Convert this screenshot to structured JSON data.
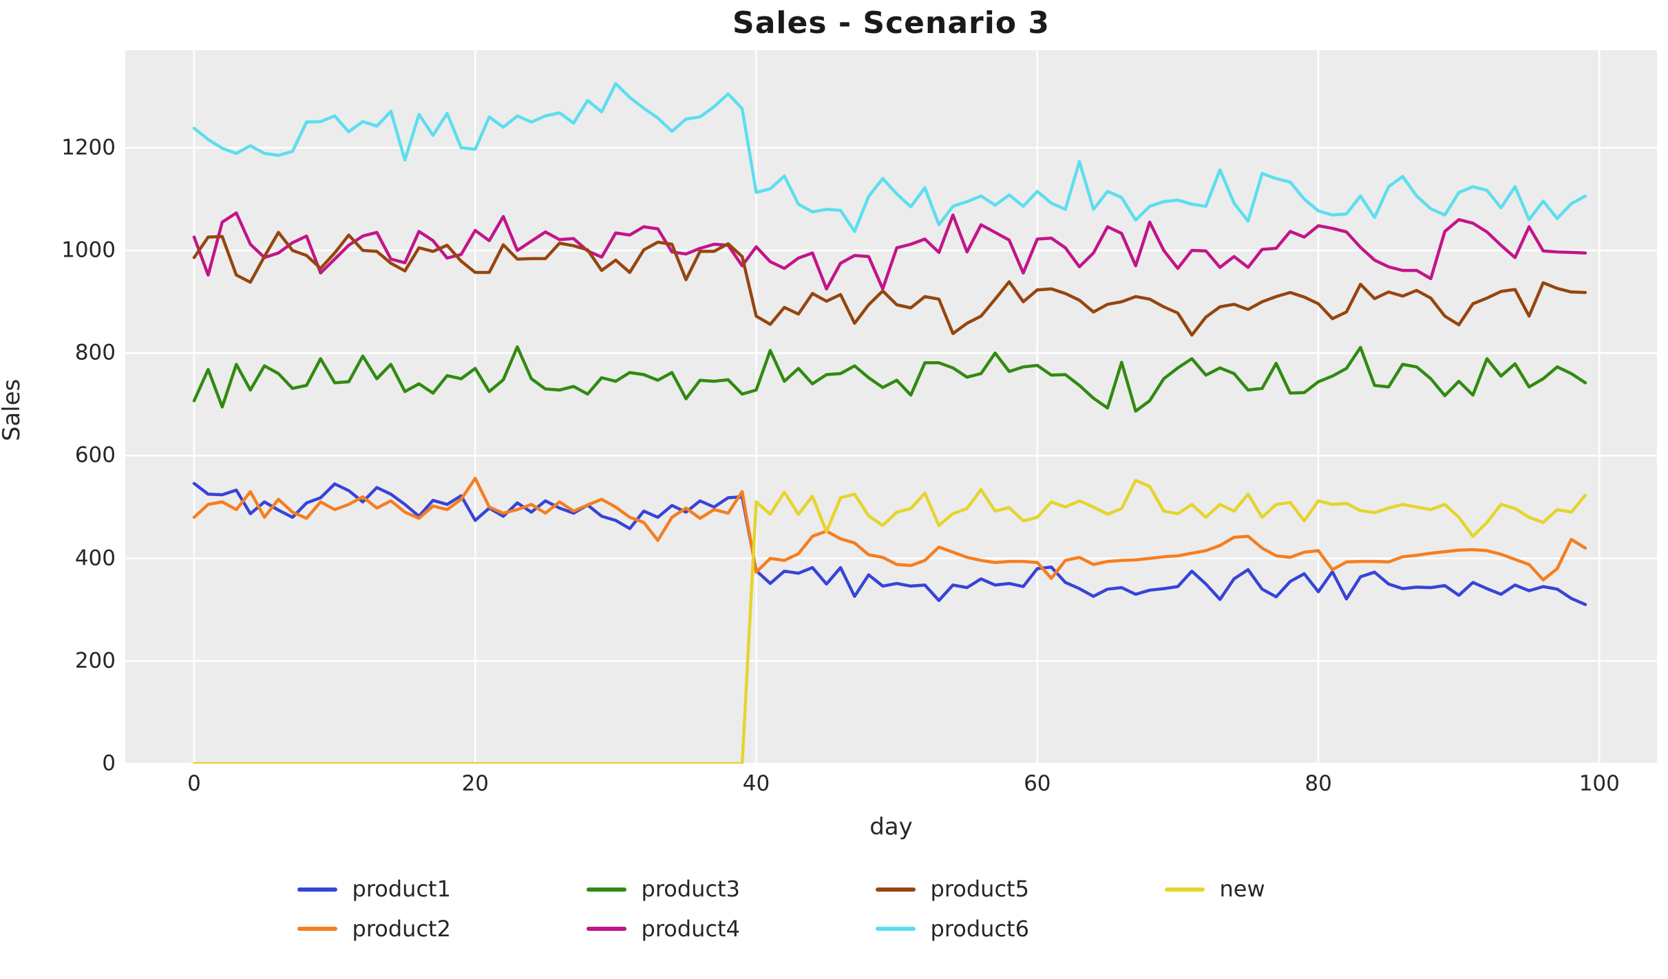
{
  "title": "Sales - Scenario 3",
  "axes": {
    "xlabel": "day",
    "ylabel": "Sales",
    "x_ticks": [
      0,
      20,
      40,
      60,
      80,
      100
    ],
    "y_ticks": [
      0,
      200,
      400,
      600,
      800,
      1000,
      1200
    ]
  },
  "style": {
    "plot_background": "#ececec",
    "gridline_color": "#ffffff",
    "text_color": "#262626",
    "line_width": 4.5
  },
  "chart_data": {
    "type": "line",
    "title": "Sales - Scenario 3",
    "xlabel": "day",
    "ylabel": "Sales",
    "xlim": [
      -4.9,
      104.1
    ],
    "ylim": [
      0,
      1390
    ],
    "grid": true,
    "legend_position": "below-center-2-rows",
    "x_ticks": [
      0,
      20,
      40,
      60,
      80,
      100
    ],
    "y_ticks": [
      0,
      200,
      400,
      600,
      800,
      1000,
      1200
    ],
    "x": [
      0,
      1,
      2,
      3,
      4,
      5,
      6,
      7,
      8,
      9,
      10,
      11,
      12,
      13,
      14,
      15,
      16,
      17,
      18,
      19,
      20,
      21,
      22,
      23,
      24,
      25,
      26,
      27,
      28,
      29,
      30,
      31,
      32,
      33,
      34,
      35,
      36,
      37,
      38,
      39,
      40,
      41,
      42,
      43,
      44,
      45,
      46,
      47,
      48,
      49,
      50,
      51,
      52,
      53,
      54,
      55,
      56,
      57,
      58,
      59,
      60,
      61,
      62,
      63,
      64,
      65,
      66,
      67,
      68,
      69,
      70,
      71,
      72,
      73,
      74,
      75,
      76,
      77,
      78,
      79,
      80,
      81,
      82,
      83,
      84,
      85,
      86,
      87,
      88,
      89,
      90,
      91,
      92,
      93,
      94,
      95,
      96,
      97,
      98,
      99
    ],
    "series": [
      {
        "name": "product1",
        "color": "#3744D8",
        "values": [
          546,
          525,
          524,
          533,
          487,
          510,
          494,
          480,
          508,
          518,
          545,
          532,
          510,
          538,
          525,
          505,
          482,
          513,
          505,
          522,
          474,
          498,
          482,
          508,
          490,
          512,
          498,
          488,
          504,
          482,
          474,
          458,
          492,
          480,
          503,
          490,
          512,
          500,
          518,
          520,
          376,
          351,
          375,
          371,
          382,
          350,
          382,
          326,
          368,
          346,
          351,
          346,
          348,
          318,
          348,
          343,
          360,
          348,
          351,
          345,
          380,
          383,
          353,
          341,
          326,
          340,
          343,
          330,
          338,
          341,
          345,
          375,
          350,
          320,
          360,
          378,
          340,
          325,
          355,
          370,
          335,
          374,
          321,
          364,
          373,
          350,
          341,
          344,
          343,
          347,
          328,
          353,
          341,
          330,
          348,
          337,
          345,
          340,
          322,
          310
        ]
      },
      {
        "name": "product2",
        "color": "#F57E20",
        "values": [
          480,
          505,
          510,
          495,
          530,
          480,
          515,
          490,
          478,
          510,
          495,
          505,
          520,
          498,
          512,
          490,
          478,
          502,
          495,
          515,
          556,
          500,
          488,
          495,
          505,
          488,
          510,
          492,
          504,
          515,
          500,
          480,
          470,
          435,
          480,
          498,
          478,
          495,
          488,
          530,
          373,
          400,
          396,
          409,
          443,
          453,
          438,
          430,
          407,
          402,
          388,
          386,
          396,
          422,
          412,
          402,
          396,
          392,
          394,
          394,
          392,
          361,
          396,
          402,
          388,
          394,
          396,
          397,
          400,
          403,
          405,
          410,
          415,
          425,
          441,
          443,
          420,
          405,
          402,
          412,
          415,
          378,
          393,
          394,
          394,
          393,
          403,
          406,
          410,
          413,
          416,
          417,
          415,
          408,
          398,
          388,
          358,
          380,
          437,
          420
        ]
      },
      {
        "name": "product3",
        "color": "#318A10",
        "values": [
          707,
          768,
          695,
          778,
          728,
          775,
          760,
          731,
          737,
          789,
          742,
          744,
          794,
          750,
          778,
          725,
          740,
          722,
          756,
          750,
          770,
          725,
          748,
          812,
          750,
          730,
          728,
          735,
          720,
          752,
          745,
          762,
          758,
          747,
          762,
          711,
          747,
          745,
          748,
          720,
          728,
          805,
          745,
          770,
          740,
          758,
          760,
          775,
          752,
          733,
          747,
          718,
          781,
          781,
          771,
          753,
          760,
          800,
          764,
          773,
          776,
          757,
          758,
          737,
          712,
          693,
          782,
          687,
          707,
          750,
          771,
          789,
          757,
          771,
          760,
          728,
          731,
          780,
          722,
          723,
          744,
          755,
          770,
          811,
          737,
          734,
          778,
          773,
          750,
          717,
          745,
          718,
          789,
          755,
          779,
          734,
          750,
          773,
          760,
          742
        ]
      },
      {
        "name": "product4",
        "color": "#C21589",
        "values": [
          1026,
          952,
          1055,
          1073,
          1012,
          986,
          995,
          1015,
          1028,
          956,
          983,
          1010,
          1028,
          1035,
          983,
          976,
          1037,
          1019,
          985,
          992,
          1039,
          1019,
          1066,
          1000,
          1018,
          1036,
          1021,
          1023,
          999,
          987,
          1034,
          1030,
          1046,
          1042,
          997,
          993,
          1004,
          1012,
          1010,
          970,
          1007,
          978,
          965,
          985,
          995,
          925,
          975,
          990,
          988,
          925,
          1005,
          1012,
          1022,
          996,
          1069,
          997,
          1050,
          1035,
          1020,
          956,
          1022,
          1024,
          1005,
          968,
          995,
          1046,
          1033,
          970,
          1055,
          1000,
          965,
          1000,
          999,
          967,
          988,
          967,
          1002,
          1004,
          1037,
          1026,
          1048,
          1043,
          1036,
          1006,
          981,
          968,
          961,
          961,
          945,
          1037,
          1060,
          1053,
          1036,
          1010,
          986,
          1046,
          999,
          997,
          996,
          995
        ]
      },
      {
        "name": "product5",
        "color": "#96450F",
        "values": [
          986,
          1026,
          1027,
          952,
          938,
          988,
          1035,
          1000,
          990,
          965,
          995,
          1030,
          1000,
          998,
          975,
          960,
          1005,
          998,
          1010,
          979,
          957,
          957,
          1011,
          983,
          984,
          984,
          1014,
          1009,
          1001,
          961,
          981,
          957,
          1001,
          1016,
          1012,
          943,
          998,
          998,
          1013,
          988,
          872,
          856,
          889,
          876,
          916,
          901,
          914,
          858,
          894,
          921,
          894,
          888,
          910,
          905,
          838,
          858,
          872,
          905,
          939,
          900,
          923,
          925,
          916,
          903,
          880,
          895,
          900,
          910,
          905,
          890,
          878,
          835,
          870,
          890,
          895,
          885,
          900,
          910,
          918,
          909,
          896,
          867,
          880,
          934,
          906,
          919,
          911,
          922,
          907,
          872,
          855,
          896,
          907,
          920,
          924,
          872,
          937,
          926,
          919,
          918
        ]
      },
      {
        "name": "product6",
        "color": "#5CDEEF",
        "values": [
          1238,
          1216,
          1199,
          1189,
          1204,
          1189,
          1185,
          1193,
          1250,
          1251,
          1262,
          1231,
          1251,
          1242,
          1271,
          1176,
          1265,
          1224,
          1267,
          1200,
          1197,
          1260,
          1240,
          1262,
          1250,
          1262,
          1268,
          1248,
          1292,
          1270,
          1325,
          1298,
          1277,
          1258,
          1232,
          1256,
          1260,
          1280,
          1305,
          1276,
          1113,
          1120,
          1145,
          1090,
          1075,
          1080,
          1078,
          1037,
          1105,
          1140,
          1110,
          1085,
          1122,
          1050,
          1086,
          1095,
          1106,
          1088,
          1108,
          1086,
          1115,
          1092,
          1080,
          1173,
          1080,
          1115,
          1103,
          1059,
          1086,
          1095,
          1098,
          1090,
          1086,
          1157,
          1092,
          1057,
          1150,
          1140,
          1133,
          1100,
          1077,
          1069,
          1071,
          1106,
          1064,
          1124,
          1144,
          1106,
          1081,
          1069,
          1113,
          1124,
          1117,
          1083,
          1124,
          1060,
          1096,
          1062,
          1091,
          1106
        ]
      },
      {
        "name": "new",
        "color": "#E5D42C",
        "values": [
          0,
          0,
          0,
          0,
          0,
          0,
          0,
          0,
          0,
          0,
          0,
          0,
          0,
          0,
          0,
          0,
          0,
          0,
          0,
          0,
          0,
          0,
          0,
          0,
          0,
          0,
          0,
          0,
          0,
          0,
          0,
          0,
          0,
          0,
          0,
          0,
          0,
          0,
          0,
          0,
          510,
          486,
          529,
          486,
          521,
          452,
          518,
          525,
          483,
          464,
          490,
          497,
          527,
          464,
          487,
          497,
          534,
          492,
          499,
          473,
          480,
          510,
          500,
          512,
          500,
          486,
          497,
          552,
          540,
          492,
          487,
          505,
          480,
          505,
          492,
          525,
          480,
          505,
          509,
          473,
          512,
          505,
          507,
          493,
          489,
          498,
          505,
          500,
          495,
          505,
          480,
          443,
          470,
          505,
          497,
          480,
          470,
          495,
          490,
          523
        ]
      }
    ]
  },
  "legend": {
    "entries": [
      "product1",
      "product2",
      "product3",
      "product4",
      "product5",
      "product6",
      "new"
    ]
  }
}
